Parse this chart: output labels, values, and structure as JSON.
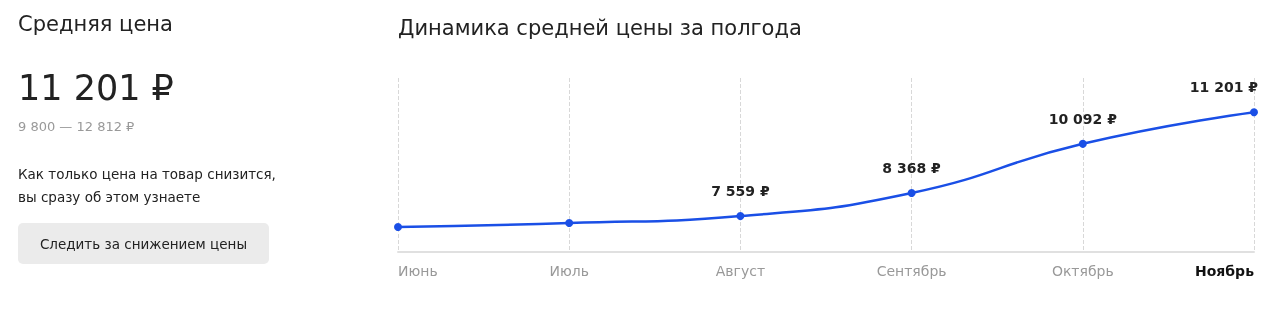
{
  "chart_data": [
    {
      "type": "other",
      "title": "Средняя цена",
      "annotations": [
        "11 201 ₽",
        "9 800 — 12 812 ₽",
        "Как только цена на товар снизится, вы сразу об этом узнаете",
        "Следить за снижением цены"
      ]
    },
    {
      "type": "line",
      "title": "Динамика средней цены за полгода",
      "categories": [
        "Июнь",
        "Июль",
        "Август",
        "Сентябрь",
        "Октябрь",
        "Ноябрь"
      ],
      "series": [
        {
          "color": "#1a4fe6",
          "values": [
            7174,
            7314,
            7559,
            8368,
            10092,
            11201
          ],
          "value_labels": [
            null,
            null,
            "7 559 ₽",
            "8 368 ₽",
            "10 092 ₽",
            "11 201 ₽"
          ]
        }
      ],
      "ylim": [
        6300,
        12400
      ],
      "tick_labels": "x",
      "grid": "x",
      "marker": "circle",
      "line_style": "solid"
    }
  ]
}
